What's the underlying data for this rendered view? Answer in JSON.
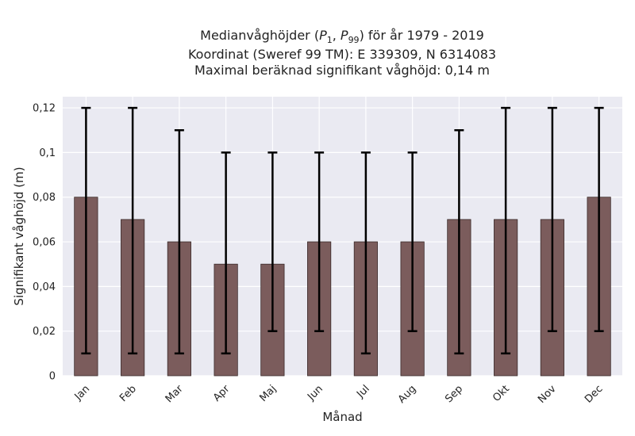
{
  "title": {
    "line1_prefix": "Medianvåghöjder (",
    "p_sym": "P",
    "p1_sub": "1",
    "comma": ",",
    "p99_sub": "99",
    "line1_suffix": ") för år 1979 - 2019",
    "line2": "Koordinat (Sweref 99 TM): E 339309, N 6314083",
    "line3": "Maximal beräknad signifikant våghöjd: 0,14 m"
  },
  "chart_data": {
    "type": "bar",
    "categories": [
      "Jan",
      "Feb",
      "Mar",
      "Apr",
      "Maj",
      "Jun",
      "Jul",
      "Aug",
      "Sep",
      "Okt",
      "Nov",
      "Dec"
    ],
    "values": [
      0.08,
      0.07,
      0.06,
      0.05,
      0.05,
      0.06,
      0.06,
      0.06,
      0.07,
      0.07,
      0.07,
      0.08
    ],
    "error_low": [
      0.01,
      0.01,
      0.01,
      0.01,
      0.02,
      0.02,
      0.01,
      0.02,
      0.01,
      0.01,
      0.02,
      0.02
    ],
    "error_high": [
      0.12,
      0.12,
      0.11,
      0.1,
      0.1,
      0.1,
      0.1,
      0.1,
      0.11,
      0.12,
      0.12,
      0.12
    ],
    "xlabel": "Månad",
    "ylabel": "Signifikant våghöjd (m)",
    "ylim": [
      0,
      0.125
    ],
    "yticks": [
      0,
      0.02,
      0.04,
      0.06,
      0.08,
      0.1,
      0.12
    ],
    "ytick_labels": [
      "0",
      "0,02",
      "0,04",
      "0,06",
      "0,08",
      "0,1",
      "0,12"
    ],
    "grid": true,
    "colors": {
      "bar": "#7b5c5c",
      "bar_edge": "#3a2a2a",
      "plot_bg": "#eaeaf2",
      "grid": "#ffffff",
      "error": "#000000"
    }
  }
}
